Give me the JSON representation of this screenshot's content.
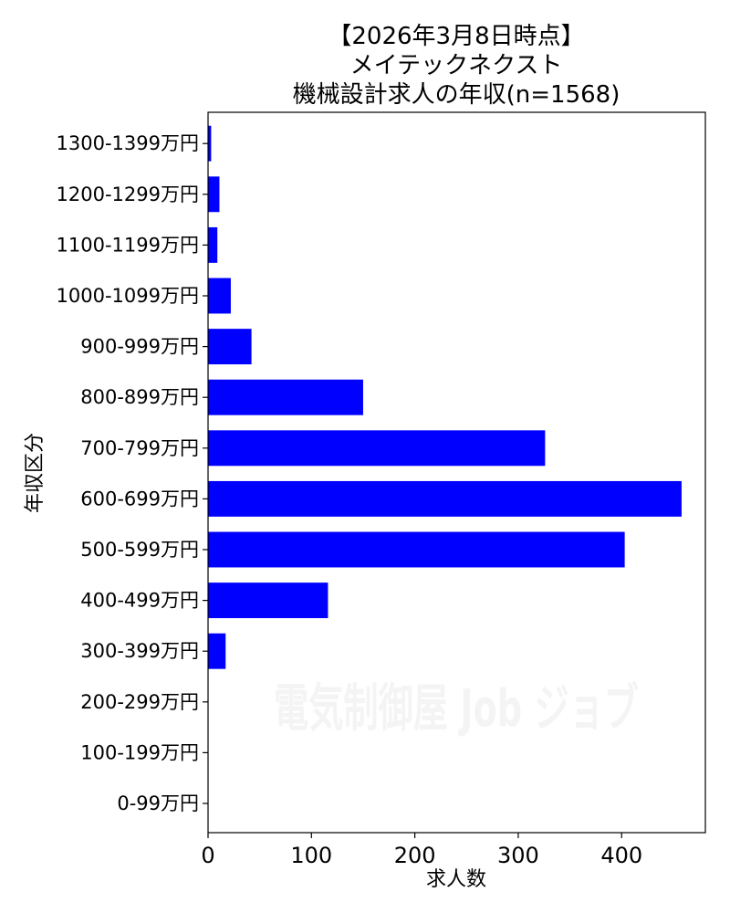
{
  "chart_data": {
    "type": "bar",
    "orientation": "horizontal",
    "title_lines": [
      "【2026年3月8日時点】",
      "メイテックネクスト",
      "機械設計求人の年収(n=1568)"
    ],
    "xlabel": "求人数",
    "ylabel": "年収区分",
    "categories": [
      "0-99万円",
      "100-199万円",
      "200-299万円",
      "300-399万円",
      "400-499万円",
      "500-599万円",
      "600-699万円",
      "700-799万円",
      "800-899万円",
      "900-999万円",
      "1000-1099万円",
      "1100-1199万円",
      "1200-1299万円",
      "1300-1399万円"
    ],
    "values": [
      0,
      0,
      0,
      17,
      116,
      403,
      458,
      326,
      150,
      42,
      22,
      9,
      11,
      3
    ],
    "xlim": [
      0,
      481
    ],
    "xticks": [
      0,
      100,
      200,
      300,
      400
    ],
    "grid": false,
    "bar_color": "#0000ff",
    "watermark": "電気制御屋 Job ジョブ"
  }
}
